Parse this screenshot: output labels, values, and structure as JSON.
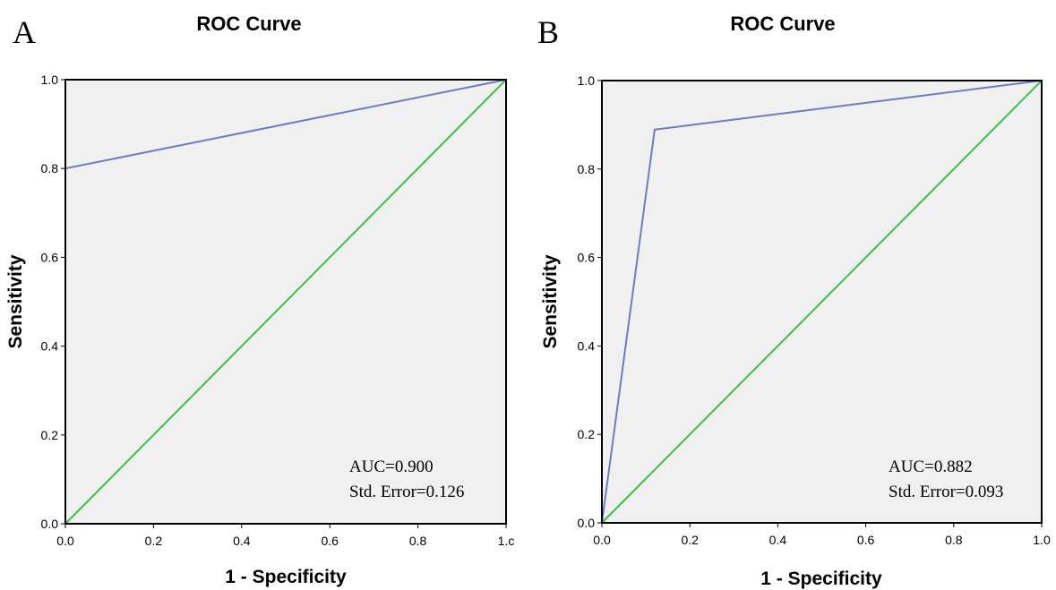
{
  "chart_data": [
    {
      "type": "line",
      "panel_label": "A",
      "title": "ROC Curve",
      "xlabel": "1 - Specificity",
      "ylabel": "Sensitivity",
      "xlim": [
        0,
        1
      ],
      "ylim": [
        0,
        1
      ],
      "xticks": [
        "0.0",
        "0.2",
        "0.4",
        "0.6",
        "0.8",
        "1.с"
      ],
      "yticks": [
        "0.0",
        "0.2",
        "0.4",
        "0.6",
        "0.8",
        "1.0"
      ],
      "grid": false,
      "series": [
        {
          "color": "#6b7cc4",
          "x": [
            0,
            0,
            1
          ],
          "y": [
            0,
            0.8,
            1
          ]
        },
        {
          "color": "#3dbf4a",
          "x": [
            0,
            1
          ],
          "y": [
            0,
            1
          ]
        }
      ],
      "annotations": [
        "AUC=0.900",
        "Std. Error=0.126"
      ]
    },
    {
      "type": "line",
      "panel_label": "B",
      "title": "ROC Curve",
      "xlabel": "1 - Specificity",
      "ylabel": "Sensitivity",
      "xlim": [
        0,
        1
      ],
      "ylim": [
        0,
        1
      ],
      "xticks": [
        "0.0",
        "0.2",
        "0.4",
        "0.6",
        "0.8",
        "1.0"
      ],
      "yticks": [
        "0.0",
        "0.2",
        "0.4",
        "0.6",
        "0.8",
        "1.0"
      ],
      "grid": false,
      "series": [
        {
          "color": "#6b7cc4",
          "x": [
            0,
            0.12,
            1
          ],
          "y": [
            0,
            0.889,
            1
          ]
        },
        {
          "color": "#3dbf4a",
          "x": [
            0,
            1
          ],
          "y": [
            0,
            1
          ]
        }
      ],
      "annotations": [
        "AUC=0.882",
        "Std. Error=0.093"
      ]
    }
  ]
}
